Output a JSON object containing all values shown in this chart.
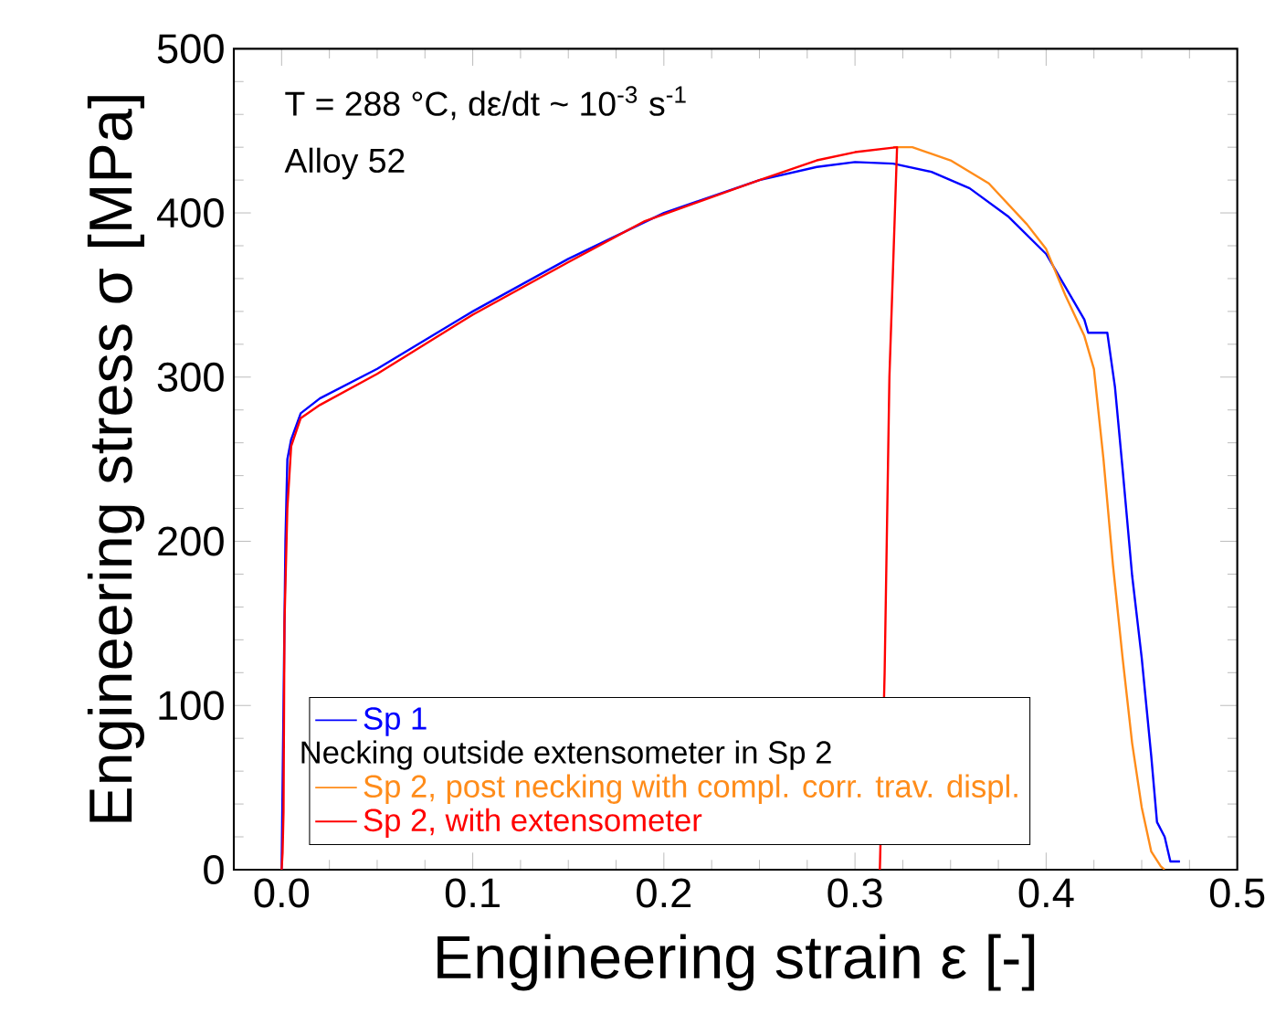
{
  "chart_data": {
    "type": "line",
    "xlabel": "Engineering strain ε   [-]",
    "ylabel": "Engineering stress σ   [MPa]",
    "annotations": [
      "T = 288 °C, dε/dt ~ 10$^{-3}$ s$^{-1}$",
      "Alloy 52",
      "Necking outside extensometer in Sp 2"
    ],
    "xlim": [
      -0.025,
      0.5
    ],
    "ylim": [
      0,
      500
    ],
    "xticks": [
      {
        "value": 0,
        "label": "0.0"
      },
      0.1,
      0.2,
      0.3,
      0.4,
      0.5
    ],
    "yticks": [
      0,
      100,
      200,
      300,
      400,
      500
    ],
    "legend": "bottom left",
    "grid": false,
    "marker": "none",
    "series": [
      {
        "name": "Sp 1",
        "color": "#0000ff",
        "x": [
          0,
          0.001,
          0.002,
          0.003,
          0.005,
          0.01,
          0.02,
          0.05,
          0.1,
          0.15,
          0.2,
          0.25,
          0.28,
          0.3,
          0.32,
          0.34,
          0.36,
          0.38,
          0.4,
          0.41,
          0.42,
          0.422,
          0.432,
          0.436,
          0.44,
          0.445,
          0.45,
          0.455,
          0.458,
          0.462,
          0.465,
          0.47
        ],
        "values": [
          0,
          100,
          200,
          250,
          262,
          278,
          287,
          305,
          340,
          372,
          400,
          420,
          428,
          431,
          430,
          425,
          415,
          398,
          375,
          355,
          335,
          327,
          327,
          294,
          244,
          179,
          129,
          69,
          29,
          20,
          5,
          5
        ]
      },
      {
        "name": "Sp 2, post necking with compl. corr. trav. displ.",
        "color": "#ff8c1a",
        "x": [
          0.32,
          0.33,
          0.35,
          0.37,
          0.39,
          0.4,
          0.41,
          0.42,
          0.425,
          0.43,
          0.435,
          0.44,
          0.445,
          0.45,
          0.455,
          0.46,
          0.462
        ],
        "values": [
          440,
          440,
          432,
          418,
          393,
          378,
          350,
          325,
          305,
          250,
          185,
          129,
          77,
          38,
          11,
          2,
          0
        ]
      },
      {
        "name": "Sp 2, with extensometer",
        "color": "#ff0000",
        "x": [
          0,
          0.0005,
          0.001,
          0.0015,
          0.003,
          0.005,
          0.01,
          0.02,
          0.05,
          0.1,
          0.15,
          0.19,
          0.25,
          0.28,
          0.3,
          0.322,
          0.318,
          0.3155,
          0.313
        ],
        "values": [
          0,
          10,
          35,
          150,
          220,
          258,
          275,
          283,
          302,
          338,
          370,
          395,
          420,
          432,
          437,
          440,
          300,
          120,
          0
        ]
      }
    ]
  }
}
